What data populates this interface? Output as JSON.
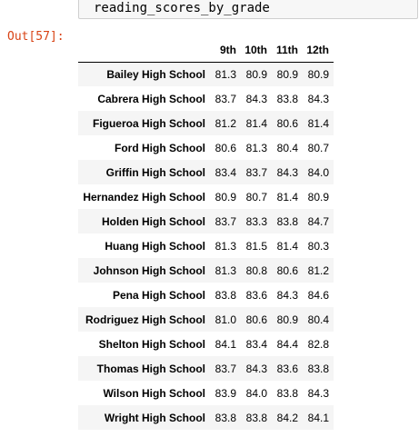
{
  "input_cell": {
    "code": "reading_scores_by_grade"
  },
  "output": {
    "prompt": "Out[57]:",
    "columns": [
      "9th",
      "10th",
      "11th",
      "12th"
    ],
    "rows": [
      {
        "school": "Bailey High School",
        "values": [
          "81.3",
          "80.9",
          "80.9",
          "80.9"
        ]
      },
      {
        "school": "Cabrera High School",
        "values": [
          "83.7",
          "84.3",
          "83.8",
          "84.3"
        ]
      },
      {
        "school": "Figueroa High School",
        "values": [
          "81.2",
          "81.4",
          "80.6",
          "81.4"
        ]
      },
      {
        "school": "Ford High School",
        "values": [
          "80.6",
          "81.3",
          "80.4",
          "80.7"
        ]
      },
      {
        "school": "Griffin High School",
        "values": [
          "83.4",
          "83.7",
          "84.3",
          "84.0"
        ]
      },
      {
        "school": "Hernandez High School",
        "values": [
          "80.9",
          "80.7",
          "81.4",
          "80.9"
        ]
      },
      {
        "school": "Holden High School",
        "values": [
          "83.7",
          "83.3",
          "83.8",
          "84.7"
        ]
      },
      {
        "school": "Huang High School",
        "values": [
          "81.3",
          "81.5",
          "81.4",
          "80.3"
        ]
      },
      {
        "school": "Johnson High School",
        "values": [
          "81.3",
          "80.8",
          "80.6",
          "81.2"
        ]
      },
      {
        "school": "Pena High School",
        "values": [
          "83.8",
          "83.6",
          "84.3",
          "84.6"
        ]
      },
      {
        "school": "Rodriguez High School",
        "values": [
          "81.0",
          "80.6",
          "80.9",
          "80.4"
        ]
      },
      {
        "school": "Shelton High School",
        "values": [
          "84.1",
          "83.4",
          "84.4",
          "82.8"
        ]
      },
      {
        "school": "Thomas High School",
        "values": [
          "83.7",
          "84.3",
          "83.6",
          "83.8"
        ]
      },
      {
        "school": "Wilson High School",
        "values": [
          "83.9",
          "84.0",
          "83.8",
          "84.3"
        ]
      },
      {
        "school": "Wright High School",
        "values": [
          "83.8",
          "83.8",
          "84.2",
          "84.1"
        ]
      }
    ]
  }
}
